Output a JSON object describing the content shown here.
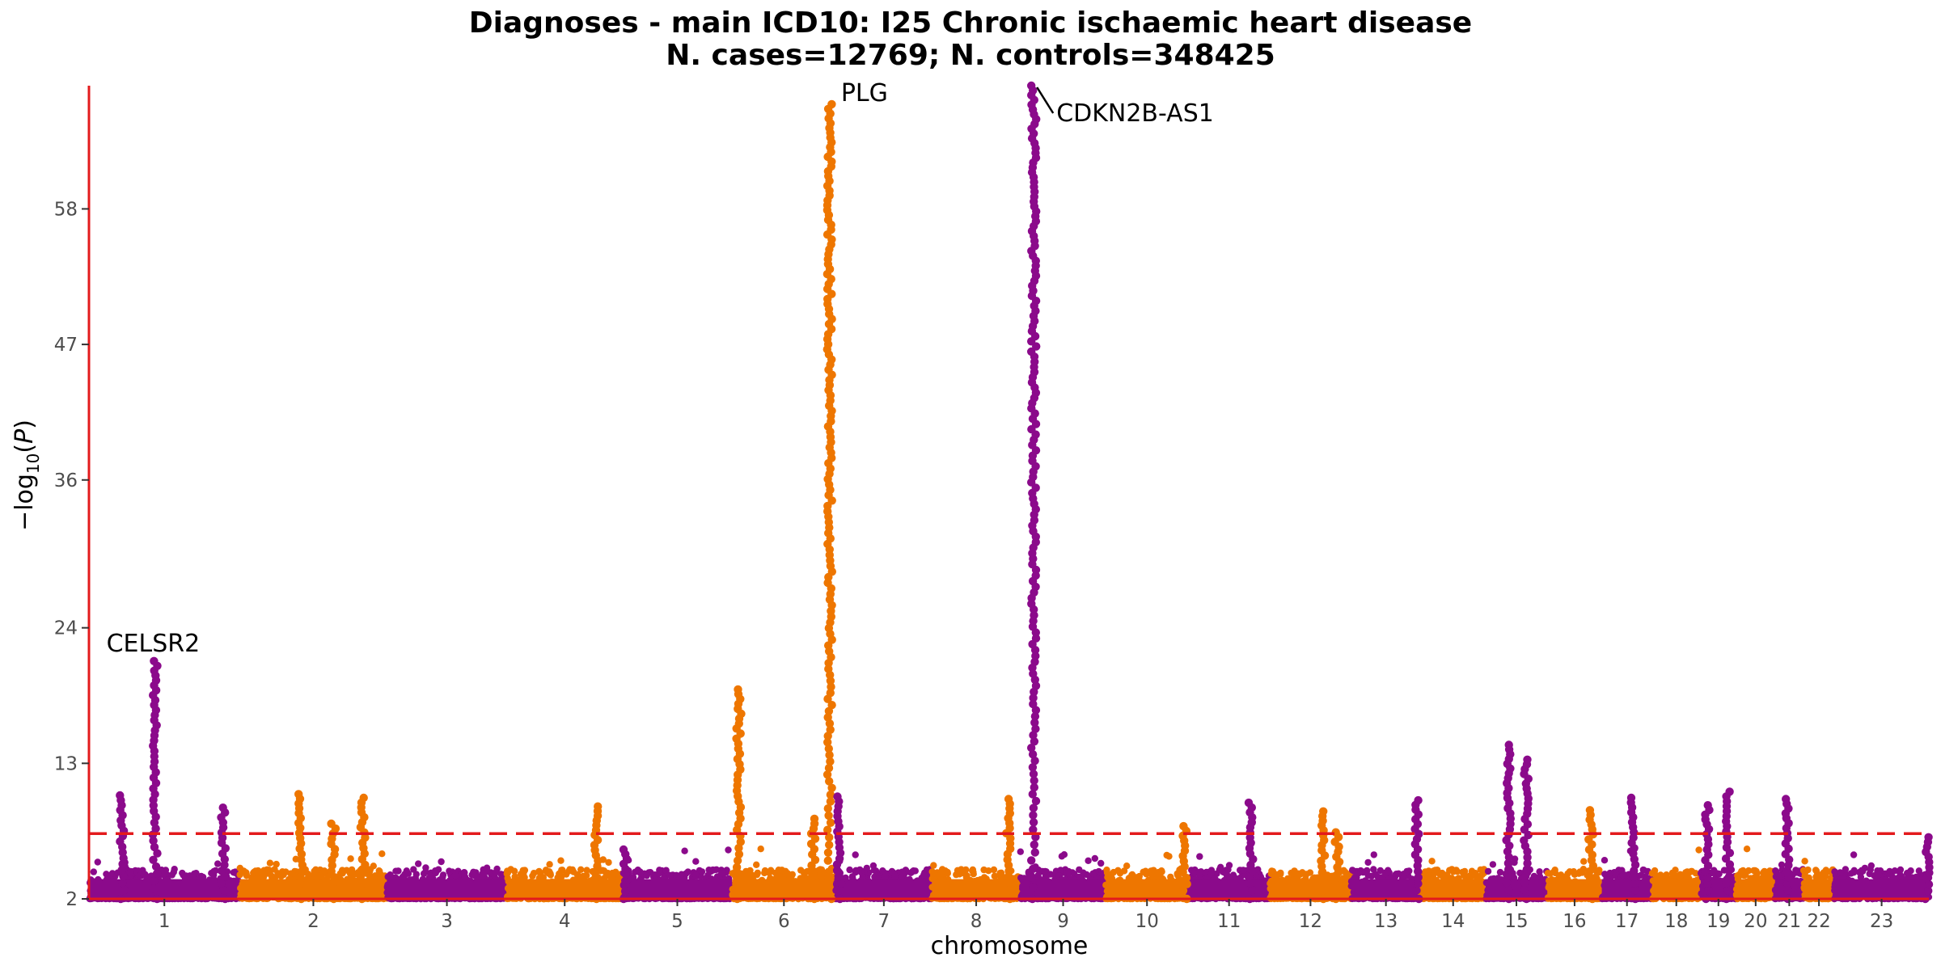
{
  "chart_data": {
    "type": "scatter",
    "title": "Diagnoses - main ICD10: I25 Chronic ischaemic heart disease",
    "subtitle": "N. cases=12769; N. controls=348425",
    "xlabel": "chromosome",
    "ylabel": "−log10(P)",
    "yticks": [
      2,
      13,
      24,
      36,
      47,
      58
    ],
    "ylim": [
      2,
      68
    ],
    "significance_line": 7.3,
    "colors": {
      "odd": "#8B0A8B",
      "even": "#EE7600",
      "axis": "#E31A1C",
      "threshold": "#E31A1C"
    },
    "chromosomes": [
      {
        "label": "1",
        "size": 249
      },
      {
        "label": "2",
        "size": 243
      },
      {
        "label": "3",
        "size": 198
      },
      {
        "label": "4",
        "size": 191
      },
      {
        "label": "5",
        "size": 181
      },
      {
        "label": "6",
        "size": 171
      },
      {
        "label": "7",
        "size": 159
      },
      {
        "label": "8",
        "size": 146
      },
      {
        "label": "9",
        "size": 141
      },
      {
        "label": "10",
        "size": 136
      },
      {
        "label": "11",
        "size": 135
      },
      {
        "label": "12",
        "size": 134
      },
      {
        "label": "13",
        "size": 115
      },
      {
        "label": "14",
        "size": 107
      },
      {
        "label": "15",
        "size": 102
      },
      {
        "label": "16",
        "size": 90
      },
      {
        "label": "17",
        "size": 83
      },
      {
        "label": "18",
        "size": 80
      },
      {
        "label": "19",
        "size": 59
      },
      {
        "label": "20",
        "size": 64
      },
      {
        "label": "21",
        "size": 47
      },
      {
        "label": "22",
        "size": 51
      },
      {
        "label": "23",
        "size": 156
      }
    ],
    "peaks": [
      {
        "chr": "1",
        "pos": 55,
        "max": 10.4
      },
      {
        "chr": "1",
        "pos": 109,
        "max": 21.3
      },
      {
        "chr": "1",
        "pos": 222,
        "max": 9.4
      },
      {
        "chr": "2",
        "pos": 100,
        "max": 10.5
      },
      {
        "chr": "2",
        "pos": 203,
        "max": 10.2
      },
      {
        "chr": "2",
        "pos": 155,
        "max": 8.1
      },
      {
        "chr": "4",
        "pos": 148,
        "max": 9.5
      },
      {
        "chr": "5",
        "pos": 5,
        "max": 6.0
      },
      {
        "chr": "6",
        "pos": 11,
        "max": 19.0
      },
      {
        "chr": "6",
        "pos": 134,
        "max": 8.5
      },
      {
        "chr": "6",
        "pos": 161,
        "max": 66.5
      },
      {
        "chr": "7",
        "pos": 6,
        "max": 10.3
      },
      {
        "chr": "8",
        "pos": 126,
        "max": 10.1
      },
      {
        "chr": "9",
        "pos": 22,
        "max": 68.0
      },
      {
        "chr": "10",
        "pos": 131,
        "max": 7.9
      },
      {
        "chr": "11",
        "pos": 103,
        "max": 9.8
      },
      {
        "chr": "12",
        "pos": 88,
        "max": 9.1
      },
      {
        "chr": "12",
        "pos": 111,
        "max": 7.4
      },
      {
        "chr": "13",
        "pos": 108,
        "max": 10.0
      },
      {
        "chr": "15",
        "pos": 38,
        "max": 14.5
      },
      {
        "chr": "15",
        "pos": 67,
        "max": 13.3
      },
      {
        "chr": "16",
        "pos": 72,
        "max": 9.2
      },
      {
        "chr": "17",
        "pos": 52,
        "max": 10.2
      },
      {
        "chr": "19",
        "pos": 11,
        "max": 9.6
      },
      {
        "chr": "19",
        "pos": 45,
        "max": 10.7
      },
      {
        "chr": "21",
        "pos": 21,
        "max": 10.1
      },
      {
        "chr": "23",
        "pos": 154,
        "max": 7.0
      }
    ],
    "annotations": [
      {
        "label": "CELSR2",
        "chr": "1",
        "pos": 109,
        "y": 21.3
      },
      {
        "label": "PLG",
        "chr": "6",
        "pos": 161,
        "y": 66.5
      },
      {
        "label": "CDKN2B-AS1",
        "chr": "9",
        "pos": 22,
        "y": 68.0
      }
    ]
  }
}
